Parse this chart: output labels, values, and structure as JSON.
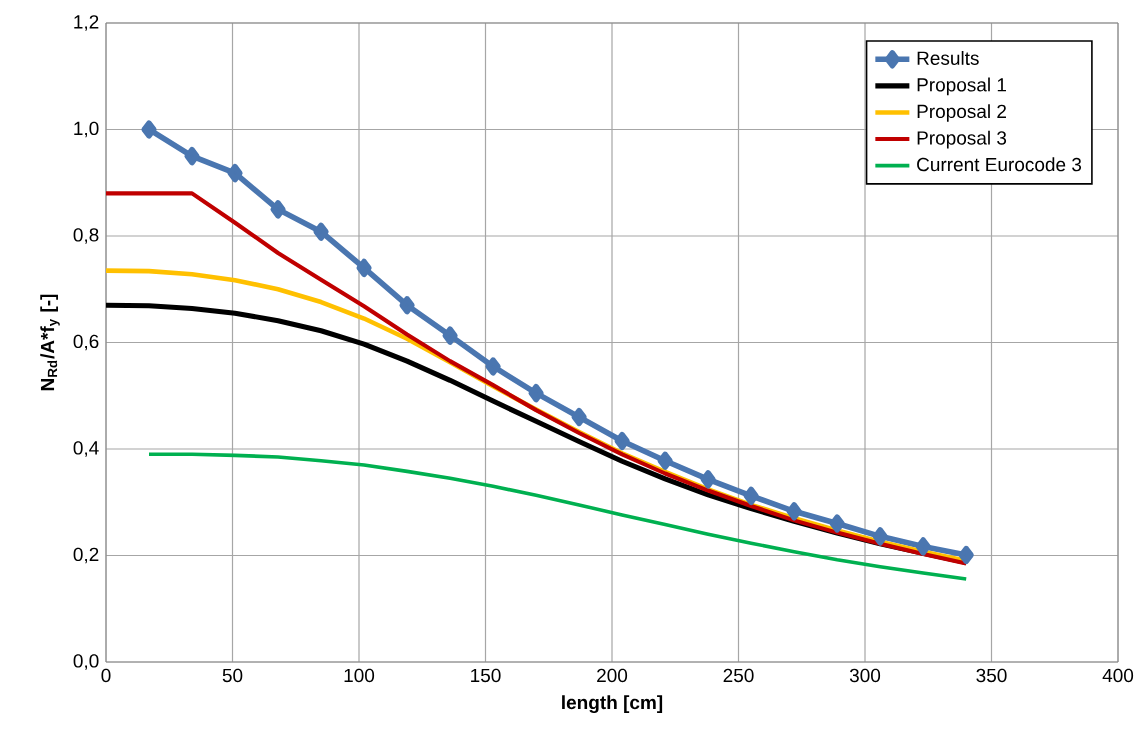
{
  "chart_data": {
    "type": "line",
    "xlabel": "length   [cm]",
    "ylabel": "N$_{Rd}$/A*f$_{y}$   [-]",
    "xlim": [
      0,
      400
    ],
    "ylim": [
      0,
      1.2
    ],
    "xticks": [
      0,
      50,
      100,
      150,
      200,
      250,
      300,
      350,
      400
    ],
    "yticks": [
      {
        "value": 0,
        "label": "0,0"
      },
      {
        "value": 0.2,
        "label": "0,2"
      },
      {
        "value": 0.4,
        "label": "0,4"
      },
      {
        "value": 0.6,
        "label": "0,6"
      },
      {
        "value": 0.8,
        "label": "0,8"
      },
      {
        "value": 1.0,
        "label": "1,0"
      },
      {
        "value": 1.2,
        "label": "1,2"
      }
    ],
    "grid": true,
    "legend": "top right",
    "series": [
      {
        "name": "Results",
        "color": "#4a76b0",
        "marker": "diamond",
        "x": [
          17,
          34,
          51,
          68,
          85,
          102,
          119,
          136,
          153,
          170,
          187,
          204,
          221,
          238,
          255,
          272,
          289,
          306,
          323,
          340
        ],
        "values": [
          1.0,
          0.95,
          0.918,
          0.85,
          0.808,
          0.74,
          0.67,
          0.613,
          0.555,
          0.505,
          0.46,
          0.415,
          0.378,
          0.343,
          0.312,
          0.283,
          0.26,
          0.236,
          0.217,
          0.201
        ]
      },
      {
        "name": "Proposal 1",
        "color": "#000000",
        "marker": "none",
        "x": [
          0,
          17,
          34,
          51,
          68,
          85,
          102,
          119,
          136,
          153,
          170,
          187,
          204,
          221,
          238,
          255,
          272,
          289,
          306,
          323,
          340
        ],
        "values": [
          0.67,
          0.669,
          0.664,
          0.655,
          0.641,
          0.622,
          0.597,
          0.565,
          0.529,
          0.49,
          0.452,
          0.414,
          0.377,
          0.344,
          0.314,
          0.288,
          0.264,
          0.242,
          0.222,
          0.204,
          0.187
        ]
      },
      {
        "name": "Proposal 2",
        "color": "#ffc000",
        "marker": "none",
        "x": [
          0,
          17,
          34,
          51,
          68,
          85,
          102,
          119,
          136,
          153,
          170,
          187,
          204,
          221,
          238,
          255,
          272,
          289,
          306,
          323,
          340
        ],
        "values": [
          0.735,
          0.734,
          0.728,
          0.717,
          0.7,
          0.676,
          0.645,
          0.607,
          0.563,
          0.518,
          0.474,
          0.432,
          0.392,
          0.357,
          0.324,
          0.295,
          0.27,
          0.247,
          0.226,
          0.207,
          0.19
        ]
      },
      {
        "name": "Proposal 3",
        "color": "#c00000",
        "marker": "none",
        "x": [
          0,
          34,
          51,
          68,
          85,
          102,
          119,
          136,
          153,
          170,
          187,
          204,
          221,
          238,
          255,
          272,
          289,
          306,
          323,
          340
        ],
        "values": [
          0.88,
          0.88,
          0.825,
          0.768,
          0.718,
          0.668,
          0.615,
          0.565,
          0.52,
          0.473,
          0.43,
          0.39,
          0.354,
          0.322,
          0.293,
          0.266,
          0.243,
          0.222,
          0.203,
          0.185
        ]
      },
      {
        "name": "Current Eurocode 3",
        "color": "#00b050",
        "marker": "none",
        "x": [
          17,
          34,
          51,
          68,
          85,
          102,
          119,
          136,
          153,
          170,
          187,
          204,
          221,
          238,
          255,
          272,
          289,
          306,
          323,
          340
        ],
        "values": [
          0.39,
          0.39,
          0.388,
          0.385,
          0.378,
          0.37,
          0.358,
          0.345,
          0.33,
          0.313,
          0.295,
          0.276,
          0.258,
          0.24,
          0.223,
          0.207,
          0.192,
          0.179,
          0.167,
          0.156
        ]
      }
    ]
  }
}
